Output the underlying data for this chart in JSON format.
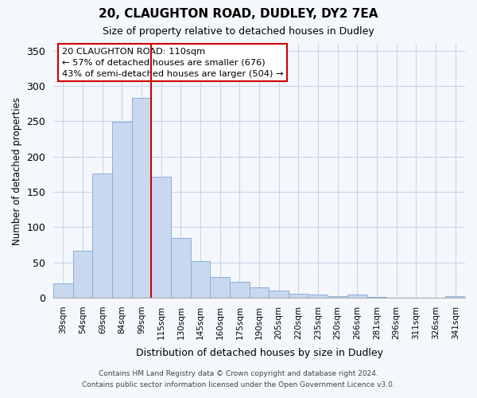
{
  "title_line1": "20, CLAUGHTON ROAD, DUDLEY, DY2 7EA",
  "title_line2": "Size of property relative to detached houses in Dudley",
  "xlabel": "Distribution of detached houses by size in Dudley",
  "ylabel": "Number of detached properties",
  "bar_labels": [
    "39sqm",
    "54sqm",
    "69sqm",
    "84sqm",
    "99sqm",
    "115sqm",
    "130sqm",
    "145sqm",
    "160sqm",
    "175sqm",
    "190sqm",
    "205sqm",
    "220sqm",
    "235sqm",
    "250sqm",
    "266sqm",
    "281sqm",
    "296sqm",
    "311sqm",
    "326sqm",
    "341sqm"
  ],
  "bar_values": [
    20,
    67,
    176,
    249,
    283,
    172,
    85,
    52,
    29,
    23,
    15,
    10,
    6,
    4,
    2,
    5,
    1,
    0,
    0,
    0,
    2
  ],
  "bar_color": "#c8d8ee",
  "bar_edge_color": "#8ab0d8",
  "vline_x": 4.5,
  "vline_color": "#cc0000",
  "annotation_title": "20 CLAUGHTON ROAD: 110sqm",
  "annotation_line1": "← 57% of detached houses are smaller (676)",
  "annotation_line2": "43% of semi-detached houses are larger (504) →",
  "annotation_box_color": "#ffffff",
  "annotation_box_edge": "#cc0000",
  "ylim": [
    0,
    360
  ],
  "yticks": [
    0,
    50,
    100,
    150,
    200,
    250,
    300,
    350
  ],
  "footer_line1": "Contains HM Land Registry data © Crown copyright and database right 2024.",
  "footer_line2": "Contains public sector information licensed under the Open Government Licence v3.0.",
  "background_color": "#f4f7fc",
  "plot_bg_color": "#f4f7fc",
  "grid_color": "#c8d4e8"
}
